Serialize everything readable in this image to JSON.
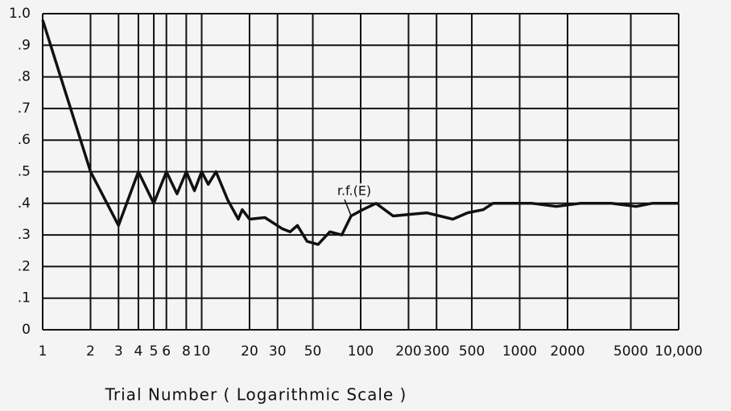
{
  "chart_data": {
    "type": "line",
    "xlabel": "Trial Number  ( Logarithmic Scale )",
    "annotation": "r.f.(E)",
    "x": [
      1,
      2,
      3,
      4,
      5,
      6,
      7,
      8,
      9,
      10,
      11,
      12.3,
      14.6,
      17,
      18,
      20,
      25,
      32,
      36,
      40,
      46,
      54,
      64,
      76,
      87,
      103,
      125,
      160,
      260,
      380,
      470,
      590,
      680,
      1200,
      1700,
      2400,
      3800,
      5400,
      6800,
      10000
    ],
    "values": [
      0.98,
      0.5,
      0.33,
      0.5,
      0.4,
      0.5,
      0.43,
      0.5,
      0.44,
      0.5,
      0.46,
      0.5,
      0.41,
      0.35,
      0.38,
      0.35,
      0.355,
      0.32,
      0.31,
      0.33,
      0.28,
      0.27,
      0.31,
      0.3,
      0.36,
      0.38,
      0.4,
      0.36,
      0.37,
      0.35,
      0.37,
      0.38,
      0.4,
      0.4,
      0.39,
      0.4,
      0.4,
      0.39,
      0.4,
      0.4
    ],
    "color": "#111111",
    "xscale": "log",
    "grid": true,
    "xlim": [
      1,
      10000
    ],
    "ylim": [
      0,
      1.0
    ],
    "xticks": [
      1,
      2,
      3,
      4,
      5,
      6,
      8,
      10,
      20,
      30,
      50,
      100,
      200,
      300,
      500,
      1000,
      2000,
      5000,
      {
        "value": 10000,
        "label": "10,000"
      }
    ],
    "yticks": [
      0,
      {
        "value": 0.1,
        "label": ".1"
      },
      {
        "value": 0.2,
        "label": ".2"
      },
      {
        "value": 0.3,
        "label": ".3"
      },
      {
        "value": 0.4,
        "label": ".4"
      },
      {
        "value": 0.5,
        "label": ".5"
      },
      {
        "value": 0.6,
        "label": ".6"
      },
      {
        "value": 0.7,
        "label": ".7"
      },
      {
        "value": 0.8,
        "label": ".8"
      },
      {
        "value": 0.9,
        "label": ".9"
      },
      {
        "value": 1.0,
        "label": "1.0"
      }
    ]
  }
}
